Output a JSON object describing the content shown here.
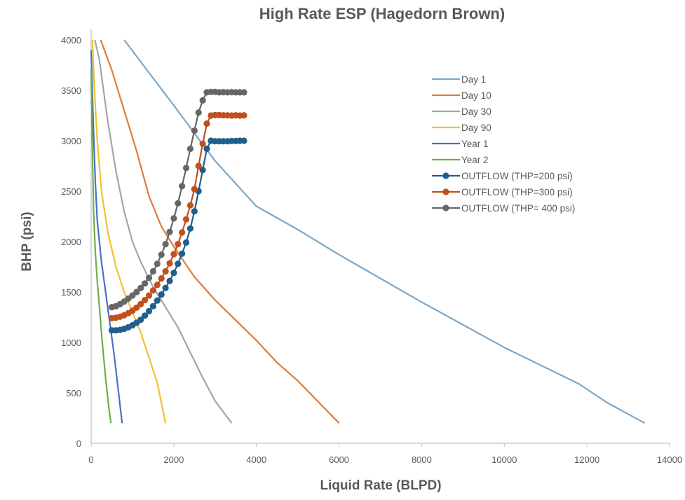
{
  "chart_data": {
    "type": "line",
    "title": "High Rate ESP (Hagedorn Brown)",
    "xlabel": "Liquid Rate (BLPD)",
    "ylabel": "BHP (psi)",
    "xlim": [
      0,
      14000
    ],
    "ylim": [
      0,
      4000
    ],
    "x_ticks": [
      0,
      2000,
      4000,
      6000,
      8000,
      10000,
      12000,
      14000
    ],
    "y_ticks": [
      0,
      500,
      1000,
      1500,
      2000,
      2500,
      3000,
      3500,
      4000
    ],
    "x_tick_labels": [
      "0",
      "2000",
      "4000",
      "6000",
      "8000",
      "10000",
      "12000",
      "14000"
    ],
    "y_tick_labels": [
      "0",
      "500",
      "1000",
      "1500",
      "2000",
      "2500",
      "3000",
      "3500",
      "4000"
    ],
    "grid": false,
    "legend_position": "top-right",
    "series": [
      {
        "name": "Day 1",
        "color": "#7BA7C7",
        "marker": "none",
        "points": [
          [
            800,
            4000
          ],
          [
            2000,
            3350
          ],
          [
            3000,
            2800
          ],
          [
            4000,
            2350
          ],
          [
            5000,
            2120
          ],
          [
            6000,
            1870
          ],
          [
            8000,
            1400
          ],
          [
            10000,
            950
          ],
          [
            11800,
            590
          ],
          [
            12500,
            400
          ],
          [
            13400,
            200
          ]
        ]
      },
      {
        "name": "Day 10",
        "color": "#E07B39",
        "marker": "none",
        "points": [
          [
            230,
            4000
          ],
          [
            500,
            3700
          ],
          [
            800,
            3300
          ],
          [
            1100,
            2900
          ],
          [
            1400,
            2450
          ],
          [
            1700,
            2150
          ],
          [
            2000,
            1950
          ],
          [
            2500,
            1650
          ],
          [
            3000,
            1420
          ],
          [
            3500,
            1220
          ],
          [
            4000,
            1020
          ],
          [
            4500,
            800
          ],
          [
            5000,
            620
          ],
          [
            5500,
            410
          ],
          [
            6000,
            200
          ]
        ]
      },
      {
        "name": "Day 30",
        "color": "#A5A5A5",
        "marker": "none",
        "points": [
          [
            90,
            4000
          ],
          [
            200,
            3800
          ],
          [
            400,
            3200
          ],
          [
            600,
            2700
          ],
          [
            800,
            2300
          ],
          [
            1000,
            2000
          ],
          [
            1200,
            1800
          ],
          [
            1500,
            1550
          ],
          [
            1800,
            1350
          ],
          [
            2100,
            1150
          ],
          [
            2400,
            900
          ],
          [
            2700,
            650
          ],
          [
            3000,
            420
          ],
          [
            3400,
            200
          ]
        ]
      },
      {
        "name": "Day 90",
        "color": "#F2C12E",
        "marker": "none",
        "points": [
          [
            30,
            4000
          ],
          [
            80,
            3500
          ],
          [
            150,
            3000
          ],
          [
            250,
            2500
          ],
          [
            400,
            2100
          ],
          [
            600,
            1750
          ],
          [
            800,
            1500
          ],
          [
            1000,
            1300
          ],
          [
            1200,
            1100
          ],
          [
            1400,
            850
          ],
          [
            1600,
            600
          ],
          [
            1800,
            200
          ]
        ]
      },
      {
        "name": "Year 1",
        "color": "#4472C4",
        "marker": "none",
        "points": [
          [
            0,
            3900
          ],
          [
            50,
            3200
          ],
          [
            100,
            2600
          ],
          [
            150,
            2200
          ],
          [
            250,
            1800
          ],
          [
            350,
            1500
          ],
          [
            450,
            1200
          ],
          [
            550,
            900
          ],
          [
            650,
            550
          ],
          [
            750,
            200
          ]
        ]
      },
      {
        "name": "Year 2",
        "color": "#70AD47",
        "marker": "none",
        "points": [
          [
            0,
            3700
          ],
          [
            30,
            2900
          ],
          [
            60,
            2300
          ],
          [
            100,
            1900
          ],
          [
            150,
            1600
          ],
          [
            200,
            1350
          ],
          [
            270,
            1000
          ],
          [
            350,
            650
          ],
          [
            430,
            350
          ],
          [
            480,
            200
          ]
        ]
      },
      {
        "name": "OUTFLOW (THP=200 psi)",
        "color": "#1F5F8B",
        "marker": "circle",
        "points": [
          [
            500,
            1120
          ],
          [
            600,
            1120
          ],
          [
            700,
            1125
          ],
          [
            800,
            1135
          ],
          [
            900,
            1150
          ],
          [
            1000,
            1170
          ],
          [
            1100,
            1195
          ],
          [
            1200,
            1225
          ],
          [
            1300,
            1265
          ],
          [
            1400,
            1310
          ],
          [
            1500,
            1360
          ],
          [
            1600,
            1415
          ],
          [
            1700,
            1475
          ],
          [
            1800,
            1540
          ],
          [
            1900,
            1610
          ],
          [
            2000,
            1690
          ],
          [
            2100,
            1780
          ],
          [
            2200,
            1880
          ],
          [
            2300,
            1990
          ],
          [
            2400,
            2130
          ],
          [
            2500,
            2300
          ],
          [
            2600,
            2500
          ],
          [
            2700,
            2710
          ],
          [
            2800,
            2920
          ],
          [
            2900,
            3000
          ],
          [
            3000,
            2995
          ],
          [
            3100,
            2995
          ],
          [
            3200,
            2995
          ],
          [
            3300,
            2995
          ],
          [
            3400,
            2998
          ],
          [
            3500,
            2998
          ],
          [
            3600,
            3000
          ],
          [
            3700,
            3000
          ]
        ]
      },
      {
        "name": "OUTFLOW (THP=300 psi)",
        "color": "#C0501D",
        "marker": "circle",
        "points": [
          [
            500,
            1240
          ],
          [
            600,
            1245
          ],
          [
            700,
            1255
          ],
          [
            800,
            1270
          ],
          [
            900,
            1290
          ],
          [
            1000,
            1315
          ],
          [
            1100,
            1345
          ],
          [
            1200,
            1380
          ],
          [
            1300,
            1420
          ],
          [
            1400,
            1465
          ],
          [
            1500,
            1515
          ],
          [
            1600,
            1570
          ],
          [
            1700,
            1635
          ],
          [
            1800,
            1705
          ],
          [
            1900,
            1785
          ],
          [
            2000,
            1875
          ],
          [
            2100,
            1975
          ],
          [
            2200,
            2090
          ],
          [
            2300,
            2220
          ],
          [
            2400,
            2360
          ],
          [
            2500,
            2520
          ],
          [
            2600,
            2750
          ],
          [
            2700,
            2970
          ],
          [
            2800,
            3170
          ],
          [
            2900,
            3250
          ],
          [
            3000,
            3255
          ],
          [
            3100,
            3255
          ],
          [
            3200,
            3252
          ],
          [
            3300,
            3252
          ],
          [
            3400,
            3250
          ],
          [
            3500,
            3252
          ],
          [
            3600,
            3250
          ],
          [
            3700,
            3252
          ]
        ]
      },
      {
        "name": "OUTFLOW (THP= 400 psi)",
        "color": "#666666",
        "marker": "circle",
        "points": [
          [
            500,
            1350
          ],
          [
            600,
            1360
          ],
          [
            700,
            1380
          ],
          [
            800,
            1405
          ],
          [
            900,
            1435
          ],
          [
            1000,
            1465
          ],
          [
            1100,
            1500
          ],
          [
            1200,
            1540
          ],
          [
            1300,
            1585
          ],
          [
            1400,
            1640
          ],
          [
            1500,
            1705
          ],
          [
            1600,
            1780
          ],
          [
            1700,
            1870
          ],
          [
            1800,
            1975
          ],
          [
            1900,
            2095
          ],
          [
            2000,
            2230
          ],
          [
            2100,
            2380
          ],
          [
            2200,
            2550
          ],
          [
            2300,
            2730
          ],
          [
            2400,
            2920
          ],
          [
            2500,
            3100
          ],
          [
            2600,
            3280
          ],
          [
            2700,
            3400
          ],
          [
            2800,
            3480
          ],
          [
            2900,
            3485
          ],
          [
            3000,
            3485
          ],
          [
            3100,
            3480
          ],
          [
            3200,
            3482
          ],
          [
            3300,
            3480
          ],
          [
            3400,
            3482
          ],
          [
            3500,
            3480
          ],
          [
            3600,
            3480
          ],
          [
            3700,
            3480
          ]
        ]
      }
    ]
  }
}
